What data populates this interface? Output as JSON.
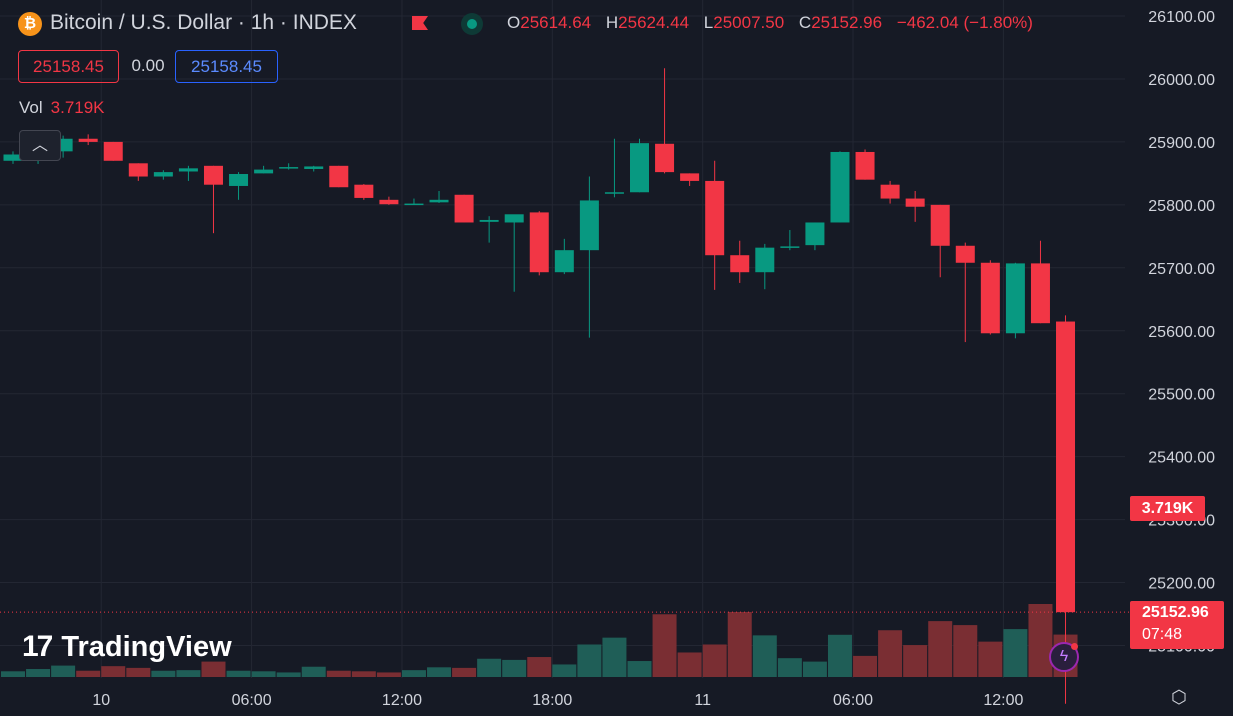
{
  "header": {
    "coin_icon": "bitcoin-icon",
    "symbol_title": "Bitcoin / U.S. Dollar · 1h · INDEX",
    "flag_icon": "flag-icon",
    "status_icon": "market-status-dot",
    "ohlc": [
      {
        "key": "O",
        "value": "25614.64"
      },
      {
        "key": "H",
        "value": "25624.44"
      },
      {
        "key": "L",
        "value": "25007.50"
      },
      {
        "key": "C",
        "value": "25152.96"
      }
    ],
    "change": "−462.04 (−1.80%)"
  },
  "trade": {
    "bid": "25158.45",
    "spread": "0.00",
    "ask": "25158.45"
  },
  "volume_legend": {
    "label": "Vol",
    "value": "3.719K"
  },
  "collapse_icon": "chevron-up-icon",
  "logo": {
    "mark": "17",
    "name": "TradingView"
  },
  "price_axis": {
    "ticks": [
      "26100.00",
      "26000.00",
      "25900.00",
      "25800.00",
      "25700.00",
      "25600.00",
      "25500.00",
      "25400.00",
      "25300.00",
      "25200.00",
      "25100.00"
    ],
    "current_price_label": "25152.96",
    "countdown": "07:48",
    "volume_label": "3.719K"
  },
  "time_axis": {
    "labels": [
      "10",
      "06:00",
      "12:00",
      "18:00",
      "11",
      "06:00",
      "12:00"
    ]
  },
  "icons": {
    "bolt": "lightning-icon",
    "settings": "settings-icon"
  },
  "colors": {
    "up": "#089981",
    "down": "#f23645",
    "up_volume": "#1f5e57",
    "down_volume": "#7a2e33",
    "background": "#161a25",
    "grid": "#232733"
  },
  "chart_data": {
    "type": "candlestick",
    "title": "Bitcoin / U.S. Dollar · 1h · INDEX",
    "interval": "1h",
    "ylim": [
      25000,
      26130
    ],
    "grid": true,
    "candles": [
      {
        "o": 25870,
        "h": 25885,
        "l": 25865,
        "c": 25880,
        "v": 0.5
      },
      {
        "o": 25875,
        "h": 25895,
        "l": 25865,
        "c": 25885,
        "v": 0.7
      },
      {
        "o": 25885,
        "h": 25910,
        "l": 25875,
        "c": 25905,
        "v": 1.0
      },
      {
        "o": 25905,
        "h": 25912,
        "l": 25895,
        "c": 25900,
        "v": 0.55
      },
      {
        "o": 25900,
        "h": 25900,
        "l": 25870,
        "c": 25870,
        "v": 0.95
      },
      {
        "o": 25866,
        "h": 25866,
        "l": 25838,
        "c": 25845,
        "v": 0.8
      },
      {
        "o": 25845,
        "h": 25855,
        "l": 25840,
        "c": 25852,
        "v": 0.55
      },
      {
        "o": 25853,
        "h": 25862,
        "l": 25838,
        "c": 25858,
        "v": 0.6
      },
      {
        "o": 25862,
        "h": 25862,
        "l": 25755,
        "c": 25832,
        "v": 1.35
      },
      {
        "o": 25830,
        "h": 25852,
        "l": 25808,
        "c": 25849,
        "v": 0.55
      },
      {
        "o": 25850,
        "h": 25862,
        "l": 25850,
        "c": 25856,
        "v": 0.5
      },
      {
        "o": 25858,
        "h": 25866,
        "l": 25856,
        "c": 25860,
        "v": 0.4
      },
      {
        "o": 25857,
        "h": 25862,
        "l": 25853,
        "c": 25861,
        "v": 0.9
      },
      {
        "o": 25862,
        "h": 25862,
        "l": 25828,
        "c": 25828,
        "v": 0.55
      },
      {
        "o": 25832,
        "h": 25833,
        "l": 25808,
        "c": 25811,
        "v": 0.5
      },
      {
        "o": 25808,
        "h": 25813,
        "l": 25800,
        "c": 25801,
        "v": 0.4
      },
      {
        "o": 25802,
        "h": 25810,
        "l": 25800,
        "c": 25802,
        "v": 0.6
      },
      {
        "o": 25804,
        "h": 25822,
        "l": 25803,
        "c": 25808,
        "v": 0.85
      },
      {
        "o": 25816,
        "h": 25816,
        "l": 25772,
        "c": 25772,
        "v": 0.8
      },
      {
        "o": 25773,
        "h": 25782,
        "l": 25740,
        "c": 25776,
        "v": 1.6
      },
      {
        "o": 25772,
        "h": 25782,
        "l": 25662,
        "c": 25785,
        "v": 1.5
      },
      {
        "o": 25788,
        "h": 25790,
        "l": 25688,
        "c": 25693,
        "v": 1.75
      },
      {
        "o": 25693,
        "h": 25746,
        "l": 25690,
        "c": 25728,
        "v": 1.1
      },
      {
        "o": 25728,
        "h": 25845,
        "l": 25589,
        "c": 25807,
        "v": 2.85
      },
      {
        "o": 25818,
        "h": 25905,
        "l": 25812,
        "c": 25820,
        "v": 3.45
      },
      {
        "o": 25820,
        "h": 25905,
        "l": 25820,
        "c": 25898,
        "v": 1.4
      },
      {
        "o": 25897,
        "h": 26017,
        "l": 25850,
        "c": 25852,
        "v": 5.5
      },
      {
        "o": 25850,
        "h": 25850,
        "l": 25830,
        "c": 25838,
        "v": 2.15
      },
      {
        "o": 25838,
        "h": 25870,
        "l": 25665,
        "c": 25720,
        "v": 2.85
      },
      {
        "o": 25720,
        "h": 25743,
        "l": 25676,
        "c": 25693,
        "v": 5.7
      },
      {
        "o": 25693,
        "h": 25738,
        "l": 25666,
        "c": 25732,
        "v": 3.65
      },
      {
        "o": 25732,
        "h": 25760,
        "l": 25728,
        "c": 25734,
        "v": 1.65
      },
      {
        "o": 25736,
        "h": 25772,
        "l": 25728,
        "c": 25772,
        "v": 1.35
      },
      {
        "o": 25772,
        "h": 25885,
        "l": 25772,
        "c": 25884,
        "v": 3.7
      },
      {
        "o": 25884,
        "h": 25888,
        "l": 25840,
        "c": 25840,
        "v": 1.85
      },
      {
        "o": 25832,
        "h": 25838,
        "l": 25802,
        "c": 25810,
        "v": 4.1
      },
      {
        "o": 25810,
        "h": 25822,
        "l": 25773,
        "c": 25797,
        "v": 2.8
      },
      {
        "o": 25800,
        "h": 25800,
        "l": 25685,
        "c": 25735,
        "v": 4.9
      },
      {
        "o": 25735,
        "h": 25740,
        "l": 25582,
        "c": 25708,
        "v": 4.55
      },
      {
        "o": 25708,
        "h": 25712,
        "l": 25594,
        "c": 25596,
        "v": 3.1
      },
      {
        "o": 25596,
        "h": 25708,
        "l": 25588,
        "c": 25707,
        "v": 4.2
      },
      {
        "o": 25707,
        "h": 25743,
        "l": 25612,
        "c": 25612,
        "v": 6.4
      },
      {
        "o": 25614.64,
        "h": 25624.44,
        "l": 25007.5,
        "c": 25152.96,
        "v": 3.719
      }
    ],
    "volume_ylim": [
      0,
      22
    ],
    "current_price": 25152.96,
    "last_volume": "3.719K",
    "xlabels": [
      {
        "text": "10",
        "index": 4
      },
      {
        "text": "06:00",
        "index": 10
      },
      {
        "text": "12:00",
        "index": 16
      },
      {
        "text": "18:00",
        "index": 22
      },
      {
        "text": "11",
        "index": 28
      },
      {
        "text": "06:00",
        "index": 34
      },
      {
        "text": "12:00",
        "index": 40
      }
    ]
  }
}
